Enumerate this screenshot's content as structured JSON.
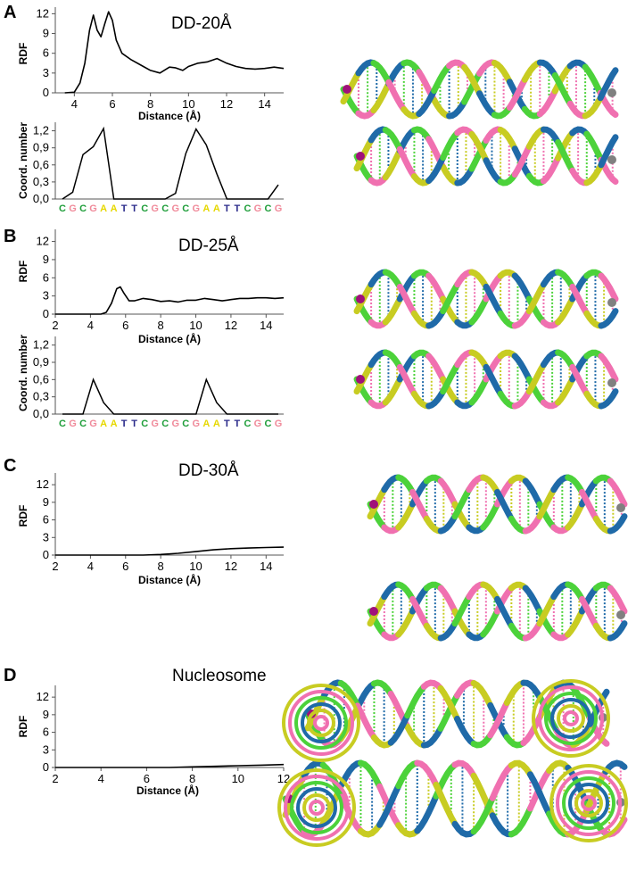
{
  "panels": [
    {
      "letter": "A",
      "title": "DD-20Å",
      "rdf_label": "RDF",
      "cn_label": "Coord. number",
      "dist_label": "Distance (Å)"
    },
    {
      "letter": "B",
      "title": "DD-25Å",
      "rdf_label": "RDF",
      "cn_label": "Coord. number",
      "dist_label": "Distance (Å)"
    },
    {
      "letter": "C",
      "title": "DD-30Å",
      "rdf_label": "RDF",
      "dist_label": "Distance (Å)"
    },
    {
      "letter": "D",
      "title": "Nucleosome",
      "rdf_label": "RDF",
      "dist_label": "Distance (Å)"
    }
  ],
  "sequence_colors": {
    "C": "#1f9e3a",
    "G": "#f08a9a",
    "A": "#e6d800",
    "T": "#2a2a8a"
  },
  "dna_colors": [
    "#4cd23a",
    "#f070b0",
    "#c8cc22",
    "#1f6aa8",
    "#a0117a",
    "#808080"
  ],
  "chart_data": [
    {
      "type": "line",
      "panel": "A",
      "title": "DD-20Å",
      "xlabel": "Distance (Å)",
      "ylabel": "RDF",
      "xlim": [
        3,
        15
      ],
      "ylim": [
        0,
        13
      ],
      "xticks": [
        "4",
        "6",
        "8",
        "10",
        "12",
        "14"
      ],
      "yticks": [
        "0",
        "3",
        "6",
        "9",
        "12"
      ],
      "x": [
        3.5,
        4.0,
        4.3,
        4.55,
        4.8,
        5.0,
        5.2,
        5.4,
        5.6,
        5.8,
        6.0,
        6.2,
        6.5,
        7.0,
        7.5,
        8.0,
        8.5,
        9.0,
        9.3,
        9.7,
        10.0,
        10.5,
        11.0,
        11.5,
        12.0,
        12.5,
        13.0,
        13.5,
        14.0,
        14.5,
        15.0
      ],
      "y": [
        0,
        0.1,
        1.5,
        4.5,
        9.5,
        11.8,
        9.5,
        8.5,
        10.5,
        12.3,
        11.0,
        8.0,
        6.0,
        5.0,
        4.2,
        3.4,
        3.0,
        3.9,
        3.8,
        3.4,
        4.0,
        4.5,
        4.7,
        5.2,
        4.5,
        4.0,
        3.7,
        3.6,
        3.7,
        3.9,
        3.7
      ]
    },
    {
      "type": "line",
      "panel": "A",
      "xlabel": "",
      "ylabel": "Coord. number",
      "ylim": [
        0,
        1.35
      ],
      "yticks": [
        "0,0",
        "0,3",
        "0,6",
        "0,9",
        "1,2"
      ],
      "sequence": "CGCGAATTCGCGCGAATTCGCG",
      "values": [
        0,
        0.12,
        0.78,
        0.92,
        1.24,
        0,
        0,
        0,
        0,
        0,
        0,
        0.1,
        0.8,
        1.23,
        0.95,
        0.45,
        0,
        0,
        0,
        0,
        0,
        0.25
      ]
    },
    {
      "type": "line",
      "panel": "B",
      "title": "DD-25Å",
      "xlabel": "Distance (Å)",
      "ylabel": "RDF",
      "xlim": [
        2,
        15
      ],
      "ylim": [
        0,
        14
      ],
      "xticks": [
        "2",
        "4",
        "6",
        "8",
        "10",
        "12",
        "14"
      ],
      "yticks": [
        "0",
        "3",
        "6",
        "9",
        "12"
      ],
      "x": [
        2,
        4.6,
        4.9,
        5.2,
        5.5,
        5.7,
        5.9,
        6.2,
        6.5,
        7.0,
        7.5,
        8.0,
        8.5,
        9.0,
        9.5,
        10.0,
        10.5,
        11.0,
        11.5,
        12.0,
        12.5,
        13.0,
        13.5,
        14.0,
        14.5,
        15.0
      ],
      "y": [
        0,
        0,
        0.3,
        1.8,
        4.2,
        4.5,
        3.5,
        2.2,
        2.2,
        2.6,
        2.4,
        2.1,
        2.2,
        2.0,
        2.3,
        2.3,
        2.6,
        2.4,
        2.2,
        2.4,
        2.6,
        2.6,
        2.7,
        2.7,
        2.6,
        2.7
      ]
    },
    {
      "type": "line",
      "panel": "B",
      "xlabel": "",
      "ylabel": "Coord. number",
      "ylim": [
        0,
        1.35
      ],
      "yticks": [
        "0,0",
        "0,3",
        "0,6",
        "0,9",
        "1,2"
      ],
      "sequence": "CGCGAATTCGCGCGAATTCGCG",
      "values": [
        0,
        0,
        0,
        0.6,
        0.2,
        0,
        0,
        0,
        0,
        0,
        0,
        0,
        0,
        0,
        0.6,
        0.2,
        0,
        0,
        0,
        0,
        0,
        0
      ]
    },
    {
      "type": "line",
      "panel": "C",
      "title": "DD-30Å",
      "xlabel": "Distance (Å)",
      "ylabel": "RDF",
      "xlim": [
        2,
        15
      ],
      "ylim": [
        0,
        14
      ],
      "xticks": [
        "2",
        "4",
        "6",
        "8",
        "10",
        "12",
        "14"
      ],
      "yticks": [
        "0",
        "3",
        "6",
        "9",
        "12"
      ],
      "x": [
        2,
        3,
        4,
        5,
        6,
        7,
        8,
        9,
        10,
        11,
        12,
        13,
        14,
        15
      ],
      "y": [
        0,
        0,
        0,
        0,
        0,
        0,
        0.1,
        0.3,
        0.6,
        0.9,
        1.1,
        1.2,
        1.3,
        1.35
      ]
    },
    {
      "type": "line",
      "panel": "D",
      "title": "Nucleosome",
      "xlabel": "Distance (Å)",
      "ylabel": "RDF",
      "xlim": [
        2,
        12
      ],
      "ylim": [
        0,
        14
      ],
      "xticks": [
        "2",
        "4",
        "6",
        "8",
        "10",
        "12"
      ],
      "yticks": [
        "0",
        "3",
        "6",
        "9",
        "12"
      ],
      "x": [
        2,
        4,
        6,
        7,
        8,
        9,
        10,
        11,
        12
      ],
      "y": [
        0,
        0,
        0,
        0,
        0.1,
        0.2,
        0.3,
        0.4,
        0.5
      ]
    }
  ]
}
